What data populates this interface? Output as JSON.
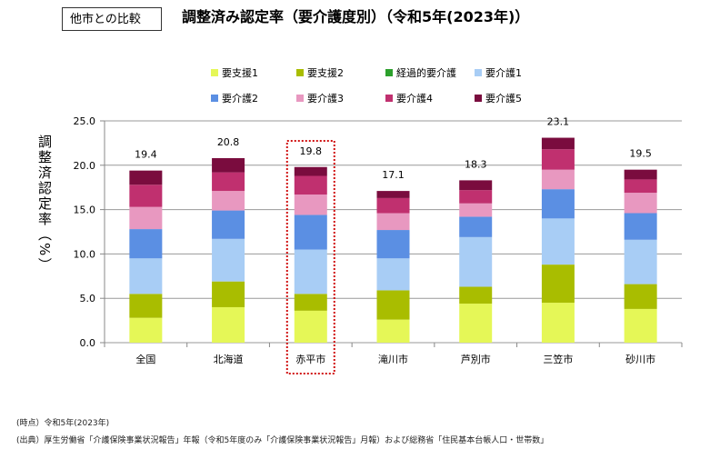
{
  "header": {
    "tag": "他市との比較",
    "title": "調整済み認定率（要介護度別）（令和5年(2023年)）"
  },
  "footer": {
    "time": "(時点）令和5年(2023年)",
    "source": "(出典）厚生労働省「介護保険事業状況報告」年報（令和5年度のみ「介護保険事業状況報告」月報）および総務省「住民基本台帳人口・世帯数」"
  },
  "chart_data": {
    "type": "bar",
    "stacked": true,
    "title": "調整済み認定率（要介護度別）（令和5年(2023年)）",
    "ylabel": "調整済認定率（%）",
    "xlabel": "",
    "ylim": [
      0,
      25
    ],
    "yticks": [
      "0.0",
      "5.0",
      "10.0",
      "15.0",
      "20.0",
      "25.0"
    ],
    "grid": true,
    "legend_position": "top",
    "categories": [
      "全国",
      "北海道",
      "赤平市",
      "滝川市",
      "芦別市",
      "三笠市",
      "砂川市"
    ],
    "highlight": "赤平市",
    "totals": [
      "19.4",
      "20.8",
      "19.8",
      "17.1",
      "18.3",
      "23.1",
      "19.5"
    ],
    "series": [
      {
        "name": "要支援1",
        "color": "#e5f757",
        "values": [
          2.8,
          4.0,
          3.6,
          2.6,
          4.4,
          4.5,
          3.8
        ]
      },
      {
        "name": "要支援2",
        "color": "#a9bd00",
        "values": [
          2.7,
          2.9,
          1.9,
          3.3,
          1.9,
          4.3,
          2.8
        ]
      },
      {
        "name": "経過的要介護",
        "color": "#2ca02c",
        "values": [
          0,
          0,
          0,
          0,
          0,
          0,
          0
        ]
      },
      {
        "name": "要介護1",
        "color": "#a8cdf5",
        "values": [
          4.0,
          4.8,
          5.0,
          3.6,
          5.6,
          5.2,
          5.0
        ]
      },
      {
        "name": "要介護2",
        "color": "#5b8fe3",
        "values": [
          3.3,
          3.2,
          3.9,
          3.2,
          2.3,
          3.3,
          3.0
        ]
      },
      {
        "name": "要介護3",
        "color": "#e898c0",
        "values": [
          2.5,
          2.2,
          2.3,
          1.9,
          1.5,
          2.2,
          2.3
        ]
      },
      {
        "name": "要介護4",
        "color": "#c0306f",
        "values": [
          2.5,
          2.1,
          2.1,
          1.7,
          1.5,
          2.3,
          1.5
        ]
      },
      {
        "name": "要介護5",
        "color": "#7a0c3e",
        "values": [
          1.6,
          1.6,
          1.0,
          0.8,
          1.1,
          1.3,
          1.1
        ]
      }
    ]
  }
}
